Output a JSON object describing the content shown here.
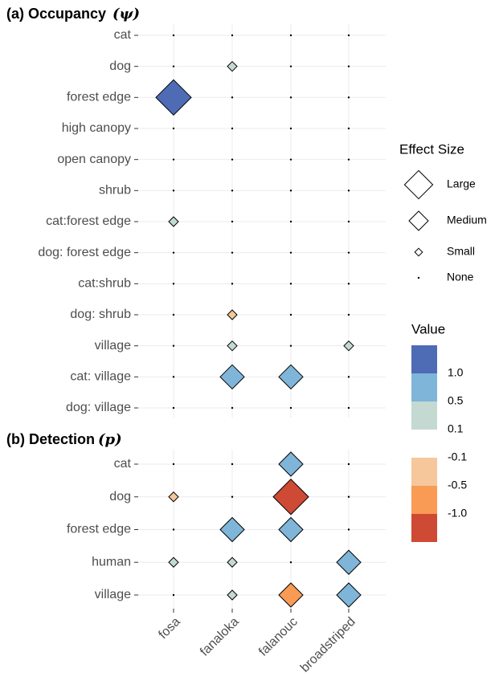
{
  "chart_data": [
    {
      "type": "matrix",
      "title": "(a) Occupancy",
      "title_symbol": "(ψ)",
      "rows": [
        "cat",
        "dog",
        "forest edge",
        "high canopy",
        "open canopy",
        "shrub",
        "cat:forest edge",
        "dog: forest edge",
        "cat:shrub",
        "dog: shrub",
        "village",
        "cat: village",
        "dog: village"
      ],
      "columns": [
        "fosa",
        "fanaloka",
        "falanouc",
        "broadstriped"
      ],
      "sizes": [
        [
          "None",
          "None",
          "None",
          "None"
        ],
        [
          "None",
          "Small",
          "None",
          "None"
        ],
        [
          "Large",
          "None",
          "None",
          "None"
        ],
        [
          "None",
          "None",
          "None",
          "None"
        ],
        [
          "None",
          "None",
          "None",
          "None"
        ],
        [
          "None",
          "None",
          "None",
          "None"
        ],
        [
          "Small",
          "None",
          "None",
          "None"
        ],
        [
          "None",
          "None",
          "None",
          "None"
        ],
        [
          "None",
          "None",
          "None",
          "None"
        ],
        [
          "None",
          "Small",
          "None",
          "None"
        ],
        [
          "None",
          "Small",
          "None",
          "Small"
        ],
        [
          "None",
          "Medium",
          "Medium",
          "None"
        ],
        [
          "None",
          "None",
          "None",
          "None"
        ]
      ],
      "colors": [
        [
          null,
          null,
          null,
          null
        ],
        [
          null,
          "#c4d9d2",
          null,
          null
        ],
        [
          "#4e6bb5",
          null,
          null,
          null
        ],
        [
          null,
          null,
          null,
          null
        ],
        [
          null,
          null,
          null,
          null
        ],
        [
          null,
          null,
          null,
          null
        ],
        [
          "#c4d9d2",
          null,
          null,
          null
        ],
        [
          null,
          null,
          null,
          null
        ],
        [
          null,
          null,
          null,
          null
        ],
        [
          null,
          "#f5c79b",
          null,
          null
        ],
        [
          null,
          "#c4d9d2",
          null,
          "#c4d9d2"
        ],
        [
          null,
          "#7fb5d8",
          "#7fb5d8",
          null
        ],
        [
          null,
          null,
          null,
          null
        ]
      ],
      "grid": true
    },
    {
      "type": "matrix",
      "title": "(b) Detection",
      "title_symbol": "(p)",
      "rows": [
        "cat",
        "dog",
        "forest edge",
        "human",
        "village"
      ],
      "columns": [
        "fosa",
        "fanaloka",
        "falanouc",
        "broadstriped"
      ],
      "sizes": [
        [
          "None",
          "None",
          "Medium",
          "None"
        ],
        [
          "Small",
          "None",
          "Large",
          "None"
        ],
        [
          "None",
          "Medium",
          "Medium",
          "None"
        ],
        [
          "Small",
          "Small",
          "None",
          "Medium"
        ],
        [
          "None",
          "Small",
          "Medium",
          "Medium"
        ]
      ],
      "colors": [
        [
          null,
          null,
          "#7fb5d8",
          null
        ],
        [
          "#f5c79b",
          null,
          "#cf4a35",
          null
        ],
        [
          null,
          "#7fb5d8",
          "#7fb5d8",
          null
        ],
        [
          "#c4d9d2",
          "#c4d9d2",
          null,
          "#7fb5d8"
        ],
        [
          null,
          "#c4d9d2",
          "#f99b55",
          "#7fb5d8"
        ]
      ],
      "grid": true
    }
  ],
  "legends": {
    "size": {
      "title": "Effect Size",
      "levels": [
        "Large",
        "Medium",
        "Small",
        "None"
      ]
    },
    "value": {
      "title": "Value",
      "colors": [
        "#4e6bb5",
        "#7fb5d8",
        "#c4d9d2",
        "#ffffff",
        "#f5c79b",
        "#f99b55",
        "#cf4a35"
      ],
      "labels": [
        "1.0",
        "0.5",
        "0.1",
        "-0.1",
        "-0.5",
        "-1.0"
      ]
    }
  }
}
